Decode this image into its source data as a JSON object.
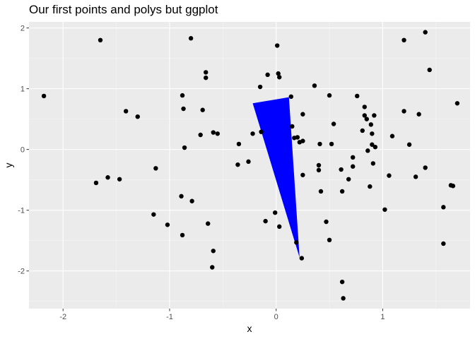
{
  "chart_data": {
    "type": "scatter",
    "title": "Our first points and polys but ggplot",
    "xlabel": "x",
    "ylabel": "y",
    "xlim": [
      -2.32,
      1.82
    ],
    "ylim": [
      -2.62,
      2.1
    ],
    "x_ticks": [
      -2,
      -1,
      0,
      1
    ],
    "y_ticks": [
      -2,
      -1,
      0,
      1,
      2
    ],
    "x_tick_labels": [
      "-2",
      "-1",
      "0",
      "1"
    ],
    "y_tick_labels": [
      "-2",
      "-1",
      "0",
      "1",
      "2"
    ],
    "grid": true,
    "legend": "none",
    "colors": {
      "panel": "#ebebeb",
      "grid_major": "#ffffff",
      "grid_minor": "#f5f5f5",
      "points": "#000000",
      "polygon": "#0000ff"
    },
    "polygon": [
      [
        -0.22,
        0.76
      ],
      [
        0.12,
        0.86
      ],
      [
        0.22,
        -1.78
      ]
    ],
    "points": [
      [
        -2.18,
        0.88
      ],
      [
        -1.65,
        1.8
      ],
      [
        -1.41,
        0.63
      ],
      [
        -1.3,
        0.54
      ],
      [
        -1.69,
        -0.55
      ],
      [
        -1.58,
        -0.46
      ],
      [
        -1.47,
        -0.49
      ],
      [
        -1.13,
        -0.31
      ],
      [
        -1.15,
        -1.07
      ],
      [
        -1.02,
        -1.24
      ],
      [
        -0.89,
        -0.77
      ],
      [
        -0.88,
        -1.41
      ],
      [
        -0.88,
        0.89
      ],
      [
        -0.87,
        0.67
      ],
      [
        -0.86,
        0.03
      ],
      [
        -0.79,
        -0.85
      ],
      [
        -0.8,
        1.83
      ],
      [
        -0.66,
        1.27
      ],
      [
        -0.66,
        1.18
      ],
      [
        -0.69,
        0.65
      ],
      [
        -0.71,
        0.24
      ],
      [
        -0.59,
        0.28
      ],
      [
        -0.55,
        0.26
      ],
      [
        -0.64,
        -1.22
      ],
      [
        -0.59,
        -1.67
      ],
      [
        -0.6,
        -1.94
      ],
      [
        -0.36,
        -0.25
      ],
      [
        -0.35,
        0.09
      ],
      [
        -0.26,
        -0.2
      ],
      [
        -0.22,
        0.26
      ],
      [
        -0.15,
        1.03
      ],
      [
        -0.14,
        0.29
      ],
      [
        -0.1,
        -1.18
      ],
      [
        -0.08,
        1.23
      ],
      [
        -0.01,
        -1.04
      ],
      [
        0.01,
        1.71
      ],
      [
        0.02,
        1.25
      ],
      [
        0.03,
        1.19
      ],
      [
        0.03,
        -1.27
      ],
      [
        0.14,
        0.87
      ],
      [
        0.15,
        0.38
      ],
      [
        0.17,
        0.19
      ],
      [
        0.2,
        0.2
      ],
      [
        0.22,
        0.12
      ],
      [
        0.25,
        0.58
      ],
      [
        0.25,
        0.14
      ],
      [
        0.25,
        -0.42
      ],
      [
        0.19,
        -1.53
      ],
      [
        0.24,
        -1.79
      ],
      [
        0.36,
        1.05
      ],
      [
        0.41,
        0.09
      ],
      [
        0.4,
        -0.26
      ],
      [
        0.4,
        -0.34
      ],
      [
        0.42,
        -0.69
      ],
      [
        0.47,
        -1.19
      ],
      [
        0.5,
        -1.49
      ],
      [
        0.5,
        0.89
      ],
      [
        0.54,
        0.42
      ],
      [
        0.52,
        0.09
      ],
      [
        0.61,
        -0.33
      ],
      [
        0.62,
        -0.69
      ],
      [
        0.62,
        -2.18
      ],
      [
        0.63,
        -2.45
      ],
      [
        0.68,
        -0.49
      ],
      [
        0.72,
        -0.13
      ],
      [
        0.72,
        -0.28
      ],
      [
        0.76,
        0.88
      ],
      [
        0.81,
        0.31
      ],
      [
        0.83,
        0.7
      ],
      [
        0.83,
        0.56
      ],
      [
        0.85,
        0.5
      ],
      [
        0.86,
        -0.02
      ],
      [
        0.88,
        -0.61
      ],
      [
        0.89,
        0.41
      ],
      [
        0.9,
        0.26
      ],
      [
        0.9,
        0.08
      ],
      [
        0.91,
        -0.23
      ],
      [
        0.92,
        0.56
      ],
      [
        0.93,
        0.04
      ],
      [
        1.02,
        -0.99
      ],
      [
        1.06,
        -0.43
      ],
      [
        1.09,
        0.22
      ],
      [
        1.2,
        1.8
      ],
      [
        1.2,
        0.63
      ],
      [
        1.25,
        0.08
      ],
      [
        1.31,
        -0.45
      ],
      [
        1.34,
        0.58
      ],
      [
        1.4,
        1.93
      ],
      [
        1.44,
        1.31
      ],
      [
        1.4,
        -0.3
      ],
      [
        1.57,
        -0.95
      ],
      [
        1.57,
        -1.55
      ],
      [
        1.64,
        -0.59
      ],
      [
        1.66,
        -0.6
      ],
      [
        1.7,
        0.76
      ]
    ]
  }
}
